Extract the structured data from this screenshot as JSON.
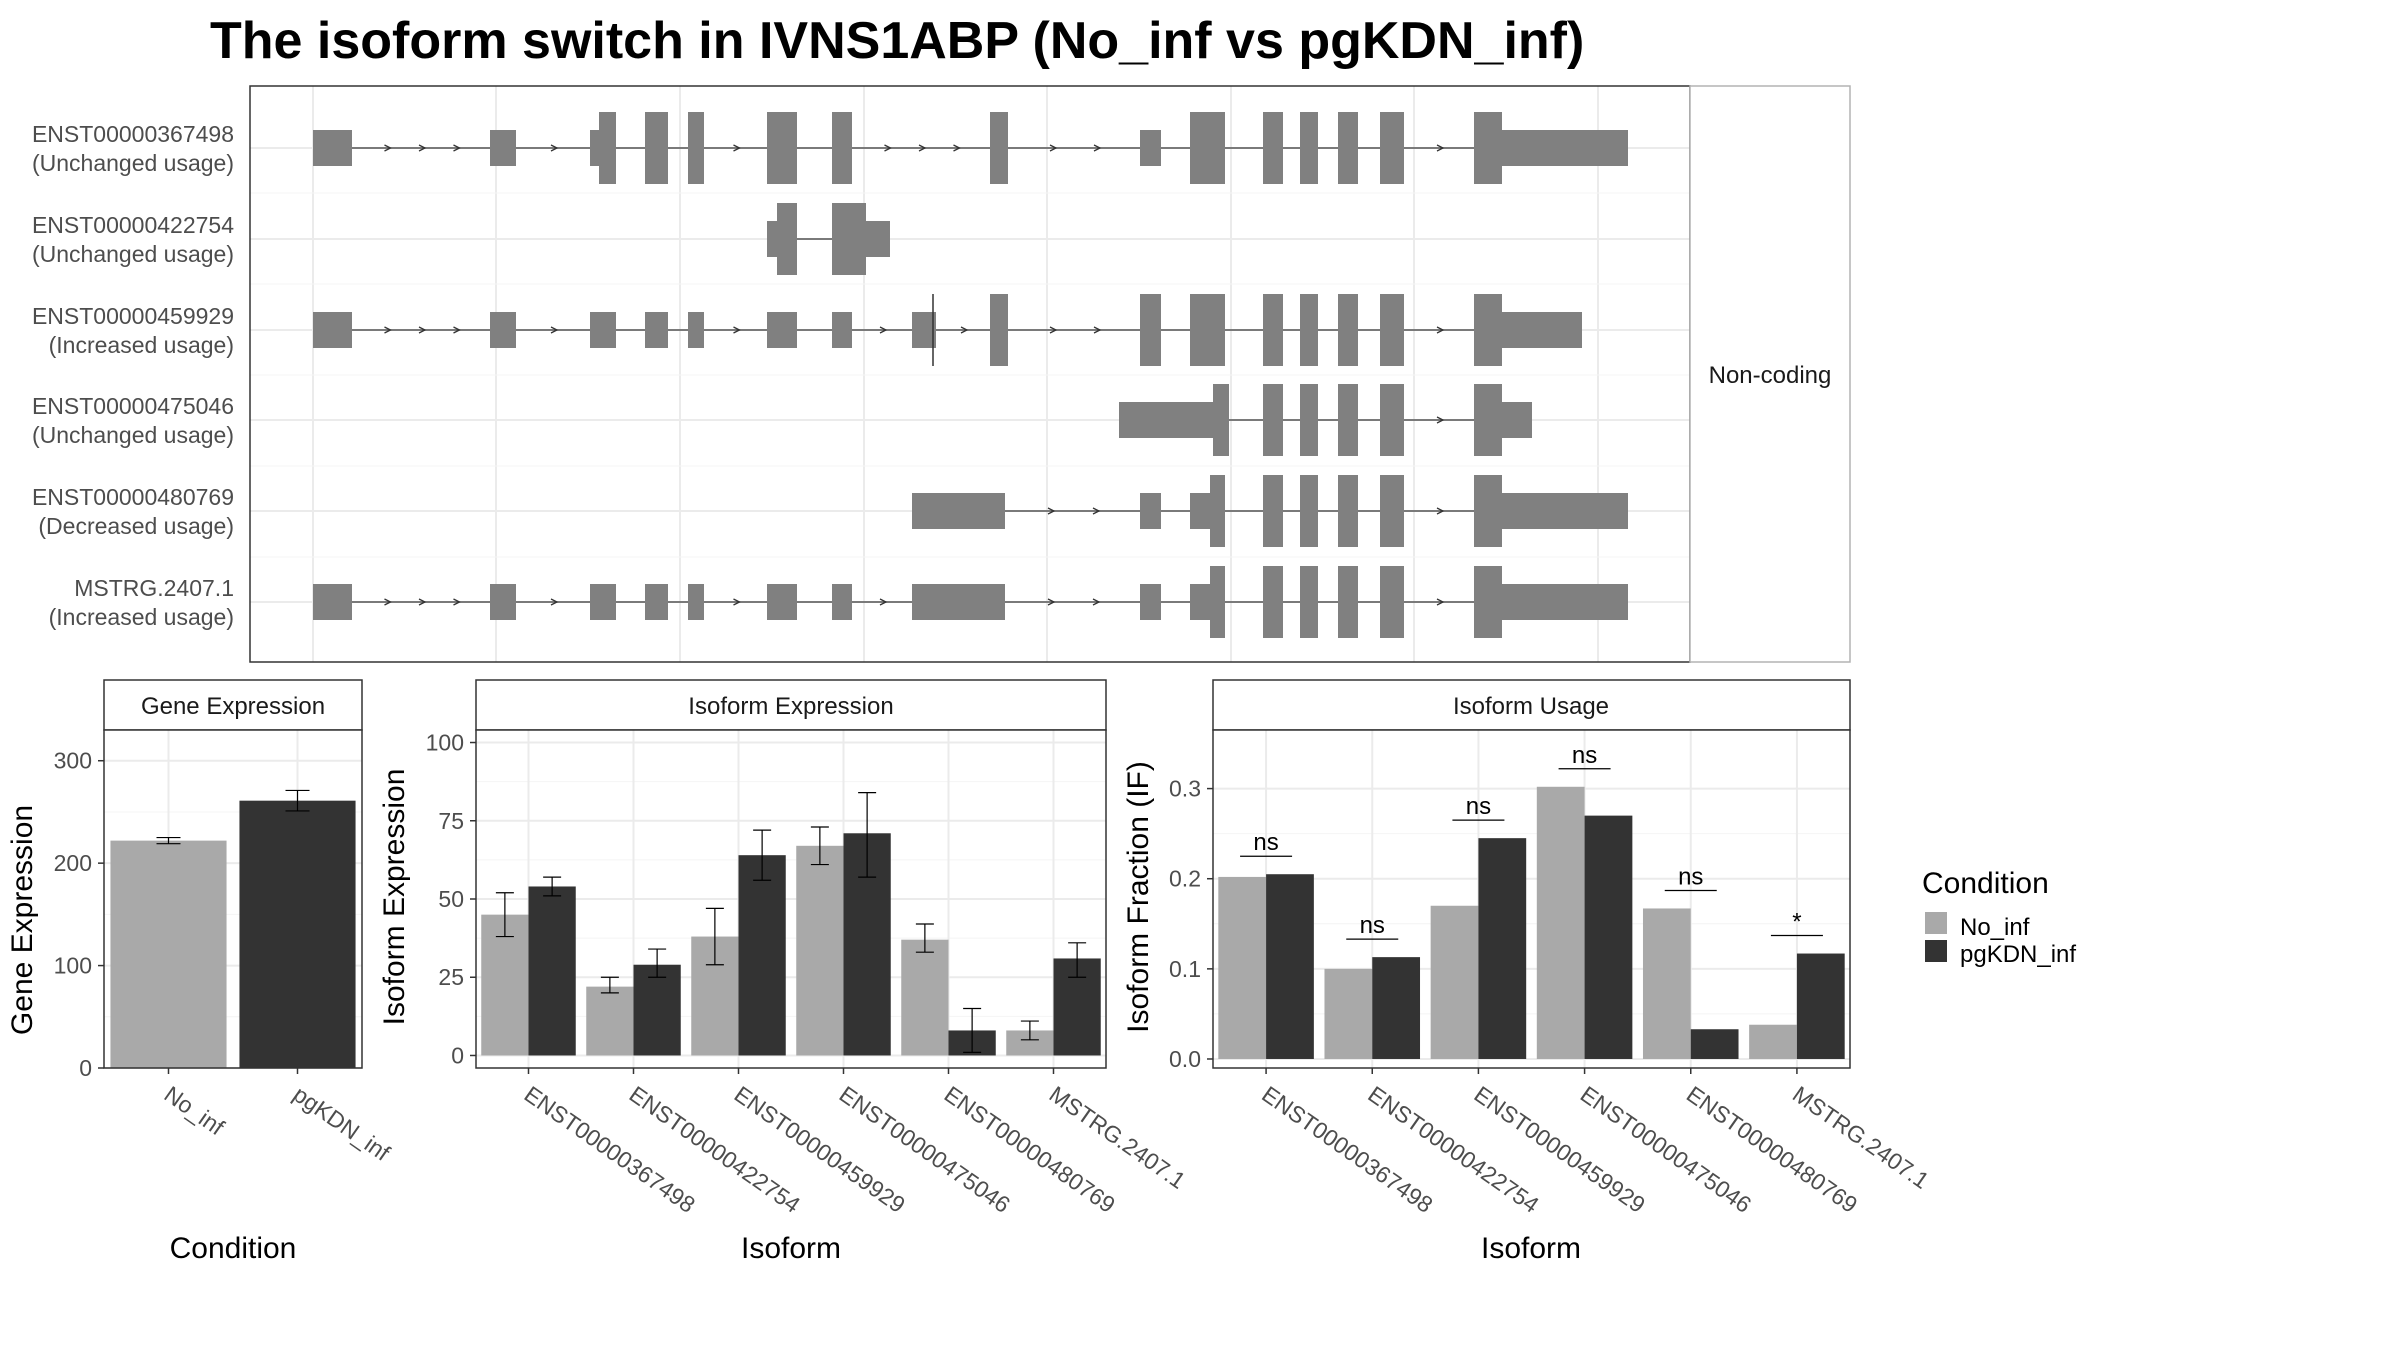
{
  "title": "The isoform switch in IVNS1ABP (No_inf vs pgKDN_inf)",
  "colors": {
    "no_inf": "#a9a9a9",
    "pgkdn_inf": "#333333",
    "exon": "#808080",
    "grid": "#ebebeb",
    "border": "#333333",
    "strip_border": "#b3b3b3",
    "text": "#4d4d4d"
  },
  "legend": {
    "title": "Condition",
    "items": [
      {
        "label": "No_inf",
        "color": "#a9a9a9"
      },
      {
        "label": "pgKDN_inf",
        "color": "#333333"
      }
    ]
  },
  "chart_data": [
    {
      "type": "diagram",
      "name": "transcript-structure",
      "strip_label": "Non-coding",
      "transcripts": [
        {
          "id": "ENST00000367498",
          "usage": "(Unchanged usage)"
        },
        {
          "id": "ENST00000422754",
          "usage": "(Unchanged usage)"
        },
        {
          "id": "ENST00000459929",
          "usage": "(Increased usage)"
        },
        {
          "id": "ENST00000475046",
          "usage": "(Unchanged usage)"
        },
        {
          "id": "ENST00000480769",
          "usage": "(Decreased usage)"
        },
        {
          "id": "MSTRG.2407.1",
          "usage": "(Increased usage)"
        }
      ]
    },
    {
      "type": "bar",
      "name": "gene-expression",
      "strip_title": "Gene Expression",
      "xlabel": "Condition",
      "ylabel": "Gene Expression",
      "categories": [
        "No_inf",
        "pgKDN_inf"
      ],
      "values": [
        222,
        261
      ],
      "errors": [
        [
          219,
          225
        ],
        [
          251,
          271
        ]
      ],
      "ylim": [
        0,
        330
      ],
      "yticks": [
        0,
        100,
        200,
        300
      ]
    },
    {
      "type": "bar",
      "name": "isoform-expression",
      "strip_title": "Isoform Expression",
      "xlabel": "Isoform",
      "ylabel": "Isoform Expression",
      "categories": [
        "ENST00000367498",
        "ENST00000422754",
        "ENST00000459929",
        "ENST00000475046",
        "ENST00000480769",
        "MSTRG.2407.1"
      ],
      "series": [
        {
          "name": "No_inf",
          "values": [
            45,
            22,
            38,
            67,
            37,
            8
          ],
          "errors": [
            [
              38,
              52
            ],
            [
              20,
              25
            ],
            [
              29,
              47
            ],
            [
              61,
              73
            ],
            [
              33,
              42
            ],
            [
              5,
              11
            ]
          ]
        },
        {
          "name": "pgKDN_inf",
          "values": [
            54,
            29,
            64,
            71,
            8,
            31
          ],
          "errors": [
            [
              51,
              57
            ],
            [
              25,
              34
            ],
            [
              56,
              72
            ],
            [
              57,
              84
            ],
            [
              1,
              15
            ],
            [
              25,
              36
            ]
          ]
        }
      ],
      "ylim": [
        -4,
        104
      ],
      "yticks": [
        0,
        25,
        50,
        75,
        100
      ]
    },
    {
      "type": "bar",
      "name": "isoform-usage",
      "strip_title": "Isoform Usage",
      "xlabel": "Isoform",
      "ylabel": "Isoform Fraction (IF)",
      "categories": [
        "ENST00000367498",
        "ENST00000422754",
        "ENST00000459929",
        "ENST00000475046",
        "ENST00000480769",
        "MSTRG.2407.1"
      ],
      "series": [
        {
          "name": "No_inf",
          "values": [
            0.202,
            0.1,
            0.17,
            0.302,
            0.167,
            0.038
          ]
        },
        {
          "name": "pgKDN_inf",
          "values": [
            0.205,
            0.113,
            0.245,
            0.27,
            0.033,
            0.117
          ]
        }
      ],
      "significance": [
        "ns",
        "ns",
        "ns",
        "ns",
        "ns",
        "*"
      ],
      "ylim": [
        -0.01,
        0.365
      ],
      "yticks": [
        0.0,
        0.1,
        0.2,
        0.3
      ]
    }
  ]
}
